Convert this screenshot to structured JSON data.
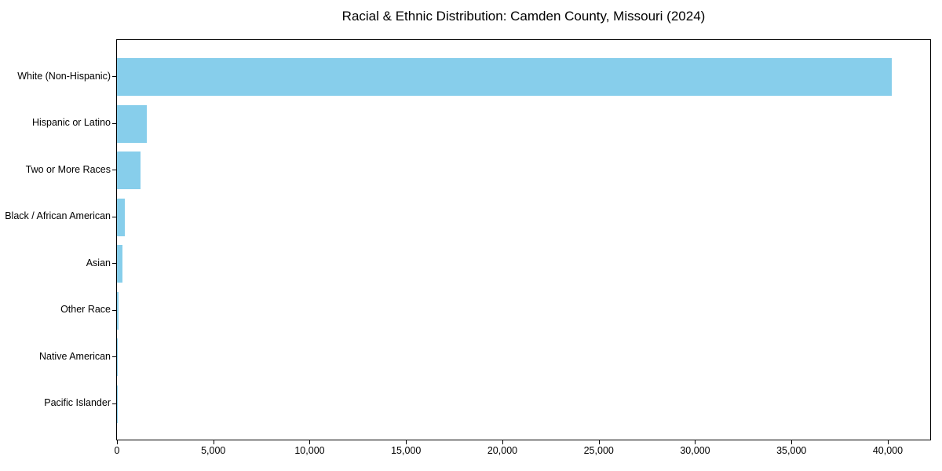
{
  "chart_data": {
    "type": "bar",
    "orientation": "horizontal",
    "title": "Racial & Ethnic Distribution: Camden County, Missouri (2024)",
    "categories": [
      "White (Non-Hispanic)",
      "Hispanic or Latino",
      "Two or More Races",
      "Black / African American",
      "Asian",
      "Other Race",
      "Native American",
      "Pacific Islander"
    ],
    "values": [
      40200,
      1550,
      1210,
      410,
      290,
      70,
      25,
      10
    ],
    "xlabel": "",
    "ylabel": "",
    "xlim": [
      0,
      42200
    ],
    "x_ticks": [
      0,
      5000,
      10000,
      15000,
      20000,
      25000,
      30000,
      35000,
      40000
    ],
    "x_tick_labels": [
      "0",
      "5,000",
      "10,000",
      "15,000",
      "20,000",
      "25,000",
      "30,000",
      "35,000",
      "40,000"
    ],
    "bar_color": "#87CEEB",
    "grid": false,
    "legend": false,
    "background_color": "#ffffff",
    "frame_color": "#000000",
    "text_color": "#000000"
  }
}
